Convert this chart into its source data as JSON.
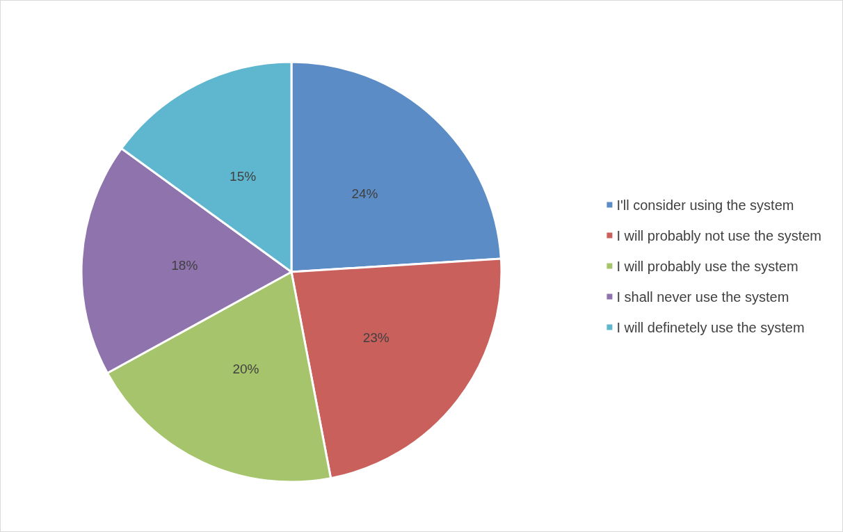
{
  "chart_data": {
    "type": "pie",
    "categories": [
      "I'll consider using the system",
      "I will probably not use the system",
      "I will probably use the system",
      "I shall never use the system",
      "I will definetely use the system"
    ],
    "values": [
      24,
      23,
      20,
      18,
      15
    ],
    "colors": [
      "#5b8cc6",
      "#c9605c",
      "#a6c46b",
      "#8e73ad",
      "#5fb6cf"
    ],
    "value_labels": [
      "24%",
      "23%",
      "20%",
      "18%",
      "15%"
    ],
    "legend": "right"
  }
}
